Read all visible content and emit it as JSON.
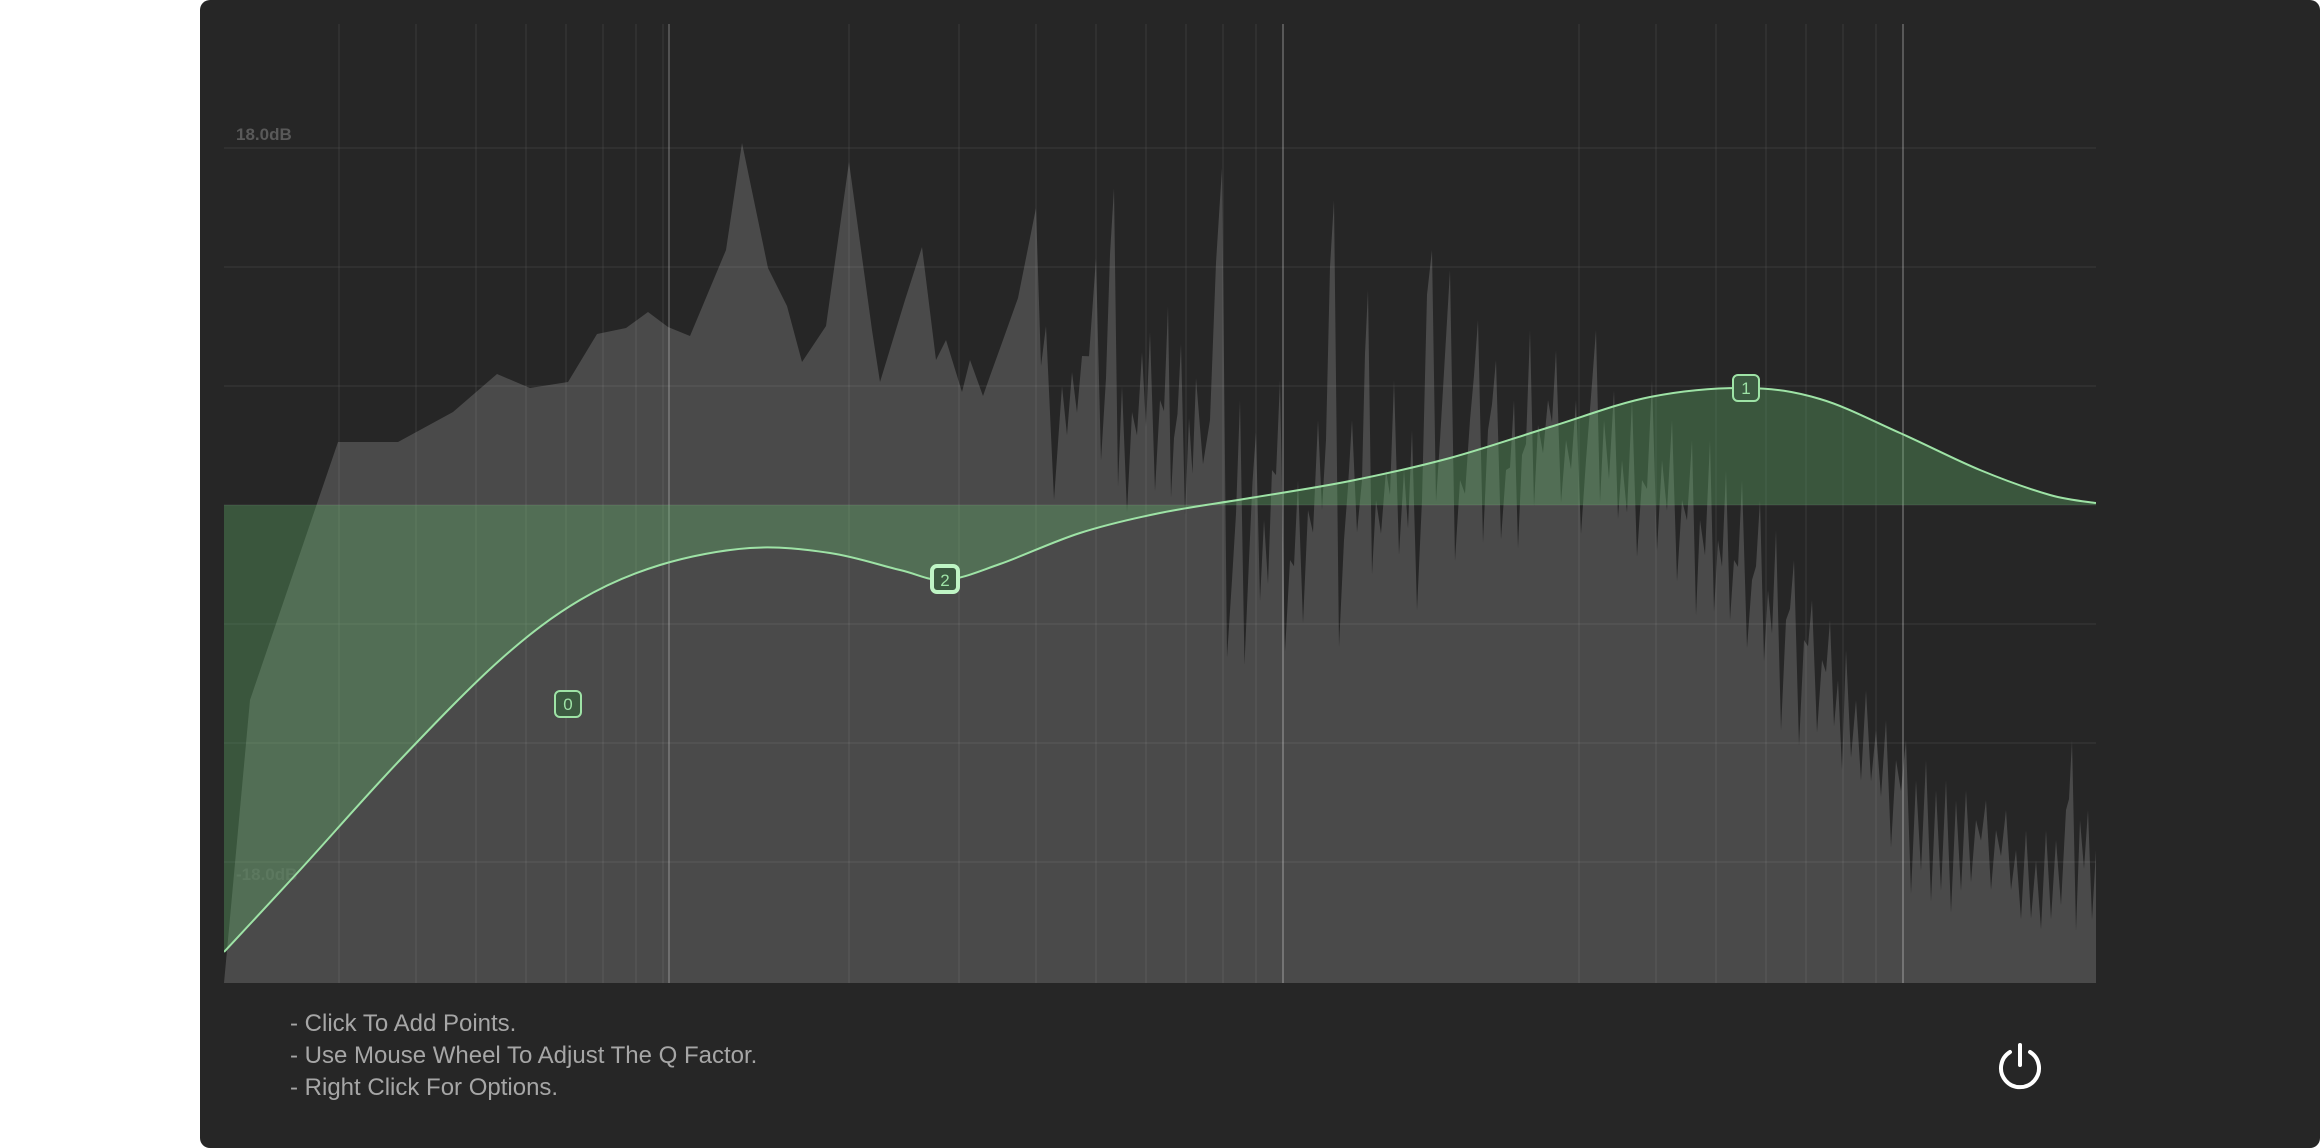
{
  "eq": {
    "db_top_label": "18.0dB",
    "db_bottom_label": "-18.0dB",
    "nodes": [
      {
        "label": "0"
      },
      {
        "label": "1"
      },
      {
        "label": "2"
      }
    ],
    "colors": {
      "background": "#262626",
      "spectrum": "#4a4a4a",
      "curve": "#9ee3a6",
      "fill": "#64b96e"
    }
  },
  "instructions": [
    "Click To Add Points.",
    "Use Mouse Wheel To Adjust The Q Factor.",
    "Right Click For Options."
  ],
  "power_button": {
    "icon": "power-icon"
  }
}
